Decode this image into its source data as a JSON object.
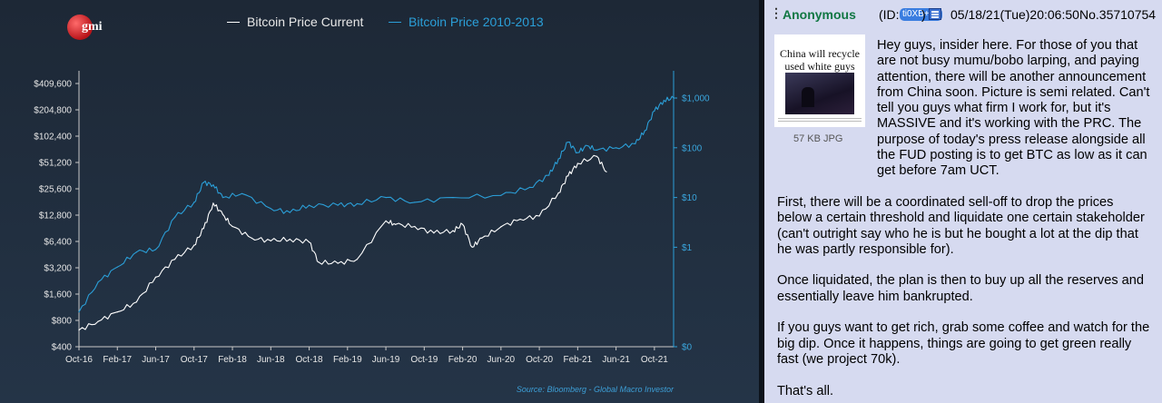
{
  "chart_data": {
    "type": "line",
    "logo_text": "gmi",
    "series": [
      {
        "name": "Bitcoin Price Current",
        "color": "#ffffff",
        "axis": "left",
        "x": [
          "Oct-16",
          "Dec-16",
          "Feb-17",
          "Apr-17",
          "Jun-17",
          "Aug-17",
          "Oct-17",
          "Nov-17",
          "Dec-17",
          "Jan-18",
          "Feb-18",
          "Apr-18",
          "Jun-18",
          "Aug-18",
          "Oct-18",
          "Nov-18",
          "Jan-19",
          "Mar-19",
          "Jun-19",
          "Jul-19",
          "Sep-19",
          "Nov-19",
          "Jan-20",
          "Feb-20",
          "Mar-20",
          "Apr-20",
          "Jun-20",
          "Aug-20",
          "Oct-20",
          "Dec-20",
          "Jan-21",
          "Feb-21",
          "Apr-21",
          "May-21"
        ],
        "values": [
          620,
          780,
          1000,
          1300,
          2500,
          4000,
          5800,
          9000,
          17500,
          13000,
          9500,
          7000,
          6500,
          6800,
          6300,
          3700,
          3600,
          4000,
          11000,
          10000,
          9500,
          8000,
          8500,
          10000,
          5500,
          7000,
          9400,
          11500,
          12500,
          23000,
          36000,
          50000,
          60000,
          40000
        ]
      },
      {
        "name": "Bitcoin Price 2010-2013",
        "color": "#2b9fd8",
        "axis": "right",
        "x": [
          "Oct-16",
          "Dec-16",
          "Feb-17",
          "Apr-17",
          "Jun-17",
          "Aug-17",
          "Oct-17",
          "Nov-17",
          "Dec-17",
          "Jan-18",
          "Mar-18",
          "Jun-18",
          "Aug-18",
          "Oct-18",
          "Jan-19",
          "Mar-19",
          "Jun-19",
          "Sep-19",
          "Jan-20",
          "Jun-20",
          "Sep-20",
          "Nov-20",
          "Dec-20",
          "Jan-21",
          "Feb-21",
          "Mar-21",
          "Apr-21",
          "Jun-21",
          "Aug-21",
          "Sep-21",
          "Oct-21",
          "Nov-21",
          "Dec-21"
        ],
        "values": [
          0.05,
          0.2,
          0.4,
          0.8,
          0.9,
          4,
          8,
          20,
          18,
          10,
          12,
          6,
          5,
          7,
          7,
          7.5,
          10,
          8,
          10,
          11,
          16,
          28,
          60,
          130,
          80,
          110,
          90,
          100,
          120,
          220,
          550,
          900,
          1000
        ]
      }
    ],
    "left_axis": {
      "ticks": [
        "$400",
        "$800",
        "$1,600",
        "$3,200",
        "$6,400",
        "$12,800",
        "$25,600",
        "$51,200",
        "$102,400",
        "$204,800",
        "$409,600"
      ],
      "scale": "log"
    },
    "right_axis": {
      "ticks": [
        "$0",
        "$1",
        "$10",
        "$100",
        "$1,000"
      ],
      "scale": "log"
    },
    "x_ticks": [
      "Oct-16",
      "Feb-17",
      "Jun-17",
      "Oct-17",
      "Feb-18",
      "Jun-18",
      "Oct-18",
      "Feb-19",
      "Jun-19",
      "Oct-19",
      "Feb-20",
      "Jun-20",
      "Oct-20",
      "Feb-21",
      "Jun-21",
      "Oct-21"
    ],
    "source": "Source: Bloomberg - Global Macro Investor",
    "grid": false,
    "legend_placement": "top-center"
  },
  "post": {
    "menu_glyph": "⋮",
    "name": "Anonymous",
    "id_prefix": "(ID:",
    "id": "ti0XB+Fa",
    "id_suffix": ")",
    "flag_icon": "flag-icon",
    "datetime": "05/18/21(Tue)20:06:50",
    "number": "No.35710754",
    "thumbnail_title": "China will recycle used white guys",
    "file_size": "57 KB JPG",
    "paragraphs": [
      "Hey guys, insider here. For those of you that are not busy mumu/bobo larping, and paying attention, there will be another announcement from China soon. Picture is semi related. Can't tell you guys what firm I work for, but it's MASSIVE and it's working with the PRC. The purpose of today's press release alongside all the FUD posting is to get BTC as low as it can get before 7am UCT.",
      "First, there will be a coordinated sell-off to drop the prices below a certain threshold and liquidate one certain stakeholder (can't outright say who he is but he bought a lot at the dip that he was partly responsible for).",
      "Once liquidated, the plan is then to buy up all the reserves and essentially leave him bankrupted.",
      "If you guys want to get rich, grab some coffee and watch for the big dip. Once it happens, things are going to get green really fast (we project 70k).",
      "That's all."
    ]
  }
}
